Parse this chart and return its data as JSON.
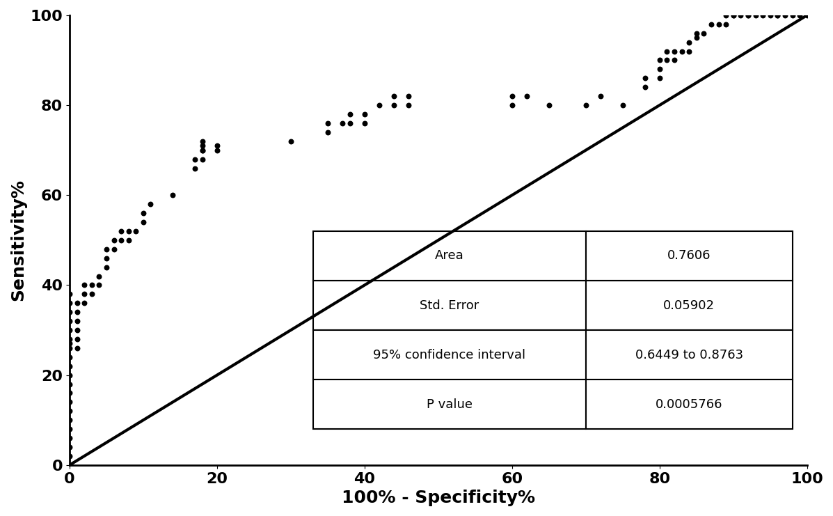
{
  "title": "",
  "xlabel": "100% - Specificity%",
  "ylabel": "Sensitivity%",
  "xlim": [
    0,
    100
  ],
  "ylim": [
    0,
    100
  ],
  "xticks": [
    0,
    20,
    40,
    60,
    80,
    100
  ],
  "yticks": [
    0,
    20,
    40,
    60,
    80,
    100
  ],
  "dot_color": "#000000",
  "dot_size": 22,
  "line_color": "#000000",
  "line_width": 3.0,
  "roc_x": [
    0,
    0,
    0,
    0,
    0,
    0,
    0,
    0,
    0,
    0,
    0,
    0,
    0,
    0,
    0,
    0,
    0,
    0,
    0,
    0,
    1,
    1,
    1,
    1,
    1,
    1,
    2,
    2,
    2,
    3,
    3,
    4,
    4,
    5,
    5,
    5,
    6,
    6,
    7,
    7,
    8,
    8,
    9,
    10,
    10,
    11,
    14,
    17,
    17,
    18,
    18,
    18,
    18,
    18,
    20,
    20,
    30,
    35,
    35,
    37,
    38,
    38,
    40,
    40,
    42,
    44,
    44,
    46,
    46,
    60,
    60,
    62,
    65,
    70,
    72,
    75,
    78,
    78,
    80,
    80,
    80,
    81,
    81,
    82,
    82,
    83,
    84,
    84,
    85,
    85,
    86,
    87,
    88,
    89,
    89,
    90,
    90,
    91,
    92,
    92,
    93,
    94,
    95,
    96,
    96,
    97,
    98,
    99,
    100
  ],
  "roc_y": [
    2,
    4,
    6,
    8,
    10,
    12,
    14,
    16,
    18,
    20,
    22,
    24,
    26,
    27,
    28,
    30,
    32,
    34,
    36,
    38,
    26,
    28,
    30,
    32,
    34,
    36,
    36,
    38,
    40,
    38,
    40,
    40,
    42,
    44,
    46,
    48,
    48,
    50,
    50,
    52,
    50,
    52,
    52,
    54,
    56,
    58,
    60,
    66,
    68,
    68,
    70,
    70,
    71,
    72,
    70,
    71,
    72,
    74,
    76,
    76,
    76,
    78,
    76,
    78,
    80,
    80,
    82,
    80,
    82,
    80,
    82,
    82,
    80,
    80,
    82,
    80,
    84,
    86,
    86,
    88,
    90,
    90,
    92,
    90,
    92,
    92,
    92,
    94,
    95,
    96,
    96,
    98,
    98,
    98,
    100,
    100,
    100,
    100,
    100,
    100,
    100,
    100,
    100,
    100,
    100,
    100,
    100,
    100,
    100
  ],
  "table_data": [
    [
      "Area",
      "0.7606"
    ],
    [
      "Std. Error",
      "0.05902"
    ],
    [
      "95% confidence interval",
      "0.6449 to 0.8763"
    ],
    [
      "P value",
      "0.0005766"
    ]
  ],
  "font_size_labels": 18,
  "font_size_ticks": 16,
  "font_size_table": 13,
  "background_color": "#ffffff"
}
